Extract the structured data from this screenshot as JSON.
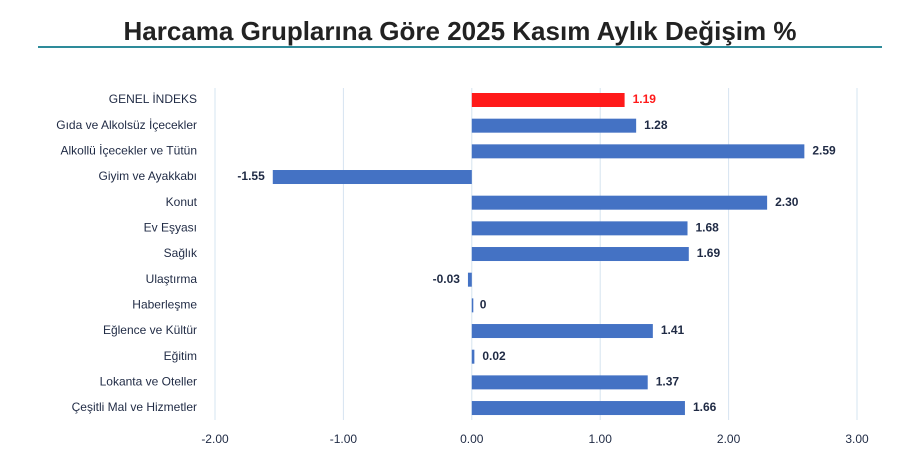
{
  "chart_data": {
    "type": "hbar",
    "title": "Harcama Gruplarına Göre 2025 Kasım Aylık Değişim %",
    "categories": [
      "GENEL İNDEKS",
      "Gıda ve Alkolsüz İçecekler",
      "Alkollü İçecekler ve Tütün",
      "Giyim ve Ayakkabı",
      "Konut",
      "Ev Eşyası",
      "Sağlık",
      "Ulaştırma",
      "Haberleşme",
      "Eğlence ve Kültür",
      "Eğitim",
      "Lokanta ve Oteller",
      "Çeşitli Mal ve Hizmetler"
    ],
    "values": [
      1.19,
      1.28,
      2.59,
      -1.55,
      2.3,
      1.68,
      1.69,
      -0.03,
      0,
      1.41,
      0.02,
      1.37,
      1.66
    ],
    "value_labels": [
      "1.19",
      "1.28",
      "2.59",
      "-1.55",
      "2.30",
      "1.68",
      "1.69",
      "-0.03",
      "0",
      "1.41",
      "0.02",
      "1.37",
      "1.66"
    ],
    "colors": [
      "#ff1a1a",
      "#4472c4",
      "#4472c4",
      "#4472c4",
      "#4472c4",
      "#4472c4",
      "#4472c4",
      "#4472c4",
      "#4472c4",
      "#4472c4",
      "#4472c4",
      "#4472c4",
      "#4472c4"
    ],
    "xlim": [
      -2,
      3
    ],
    "xticks": [
      {
        "value": -2,
        "label": "-2.00"
      },
      {
        "value": -1,
        "label": "-1.00"
      },
      {
        "value": 0,
        "label": "0.00"
      },
      {
        "value": 1,
        "label": "1.00"
      },
      {
        "value": 2,
        "label": "2.00"
      },
      {
        "value": 3,
        "label": "3.00"
      }
    ],
    "grid": true
  }
}
